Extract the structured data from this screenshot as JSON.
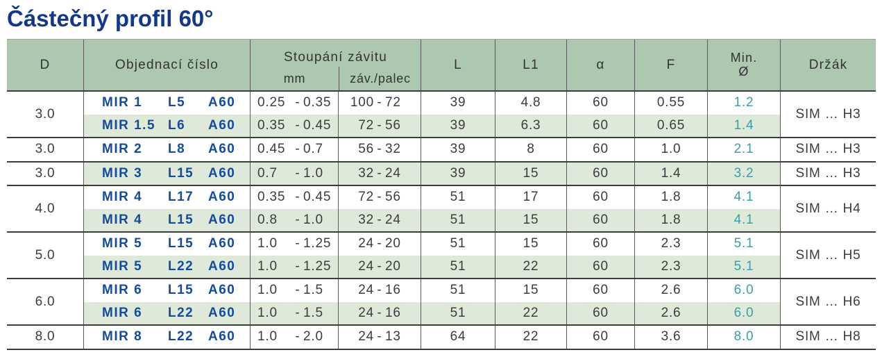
{
  "title": "Částečný profil 60°",
  "ui": {
    "dash": "-"
  },
  "colors": {
    "title_blue": "#12388c",
    "order_blue": "#164a9d",
    "header_green": "#aec8b0",
    "row_green": "#dee9da",
    "teal_min_diameter": "#3b9ea6",
    "body_text": "#3c3c3c"
  },
  "table": {
    "headers": {
      "d": "D",
      "order": "Objednací číslo",
      "pitch": "Stoupání závitu",
      "pitch_mm": "mm",
      "pitch_tpi": "záv./palec",
      "l": "L",
      "l1": "L1",
      "alpha": "α",
      "f": "F",
      "min1": "Min.",
      "min2": "Ø",
      "holder": "Držák"
    },
    "groups": [
      {
        "d": "3.0",
        "holder": "SIM … H3",
        "rows": [
          {
            "name": "MIR 1",
            "len": "L5",
            "ang": "A60",
            "mm_min": "0.25",
            "mm_max": "0.35",
            "tpi_min": "100",
            "tpi_max": "72",
            "l": "39",
            "l1": "4.8",
            "alpha": "60",
            "f": "0.55",
            "min_d": "1.2"
          },
          {
            "name": "MIR 1.5",
            "len": "L6",
            "ang": "A60",
            "mm_min": "0.35",
            "mm_max": "0.45",
            "tpi_min": "72",
            "tpi_max": "56",
            "l": "39",
            "l1": "6.3",
            "alpha": "60",
            "f": "0.65",
            "min_d": "1.4"
          }
        ]
      },
      {
        "d": "3.0",
        "holder": "SIM … H3",
        "rows": [
          {
            "name": "MIR 2",
            "len": "L8",
            "ang": "A60",
            "mm_min": "0.45",
            "mm_max": "0.7",
            "tpi_min": "56",
            "tpi_max": "32",
            "l": "39",
            "l1": "8",
            "alpha": "60",
            "f": "1.0",
            "min_d": "2.1"
          }
        ]
      },
      {
        "d": "3.0",
        "holder": "SIM … H3",
        "rows": [
          {
            "name": "MIR 3",
            "len": "L15",
            "ang": "A60",
            "mm_min": "0.7",
            "mm_max": "1.0",
            "tpi_min": "32",
            "tpi_max": "24",
            "l": "39",
            "l1": "15",
            "alpha": "60",
            "f": "1.4",
            "min_d": "3.2"
          }
        ]
      },
      {
        "d": "4.0",
        "holder": "SIM … H4",
        "rows": [
          {
            "name": "MIR 4",
            "len": "L17",
            "ang": "A60",
            "mm_min": "0.35",
            "mm_max": "0.45",
            "tpi_min": "72",
            "tpi_max": "56",
            "l": "51",
            "l1": "17",
            "alpha": "60",
            "f": "1.8",
            "min_d": "4.1"
          },
          {
            "name": "MIR 4",
            "len": "L15",
            "ang": "A60",
            "mm_min": "0.8",
            "mm_max": "1.0",
            "tpi_min": "32",
            "tpi_max": "24",
            "l": "51",
            "l1": "15",
            "alpha": "60",
            "f": "1.8",
            "min_d": "4.1"
          }
        ]
      },
      {
        "d": "5.0",
        "holder": "SIM … H5",
        "rows": [
          {
            "name": "MIR 5",
            "len": "L15",
            "ang": "A60",
            "mm_min": "1.0",
            "mm_max": "1.25",
            "tpi_min": "24",
            "tpi_max": "20",
            "l": "51",
            "l1": "15",
            "alpha": "60",
            "f": "2.3",
            "min_d": "5.1"
          },
          {
            "name": "MIR 5",
            "len": "L22",
            "ang": "A60",
            "mm_min": "1.0",
            "mm_max": "1.25",
            "tpi_min": "24",
            "tpi_max": "20",
            "l": "51",
            "l1": "22",
            "alpha": "60",
            "f": "2.3",
            "min_d": "5.1"
          }
        ]
      },
      {
        "d": "6.0",
        "holder": "SIM … H6",
        "rows": [
          {
            "name": "MIR 6",
            "len": "L15",
            "ang": "A60",
            "mm_min": "1.0",
            "mm_max": "1.5",
            "tpi_min": "24",
            "tpi_max": "16",
            "l": "51",
            "l1": "15",
            "alpha": "60",
            "f": "2.6",
            "min_d": "6.0"
          },
          {
            "name": "MIR 6",
            "len": "L22",
            "ang": "A60",
            "mm_min": "1.0",
            "mm_max": "1.5",
            "tpi_min": "24",
            "tpi_max": "16",
            "l": "51",
            "l1": "22",
            "alpha": "60",
            "f": "2.6",
            "min_d": "6.0"
          }
        ]
      },
      {
        "d": "8.0",
        "holder": "SIM … H8",
        "rows": [
          {
            "name": "MIR 8",
            "len": "L22",
            "ang": "A60",
            "mm_min": "1.0",
            "mm_max": "2.0",
            "tpi_min": "24",
            "tpi_max": "13",
            "l": "64",
            "l1": "22",
            "alpha": "60",
            "f": "3.6",
            "min_d": "8.0"
          }
        ]
      }
    ]
  }
}
